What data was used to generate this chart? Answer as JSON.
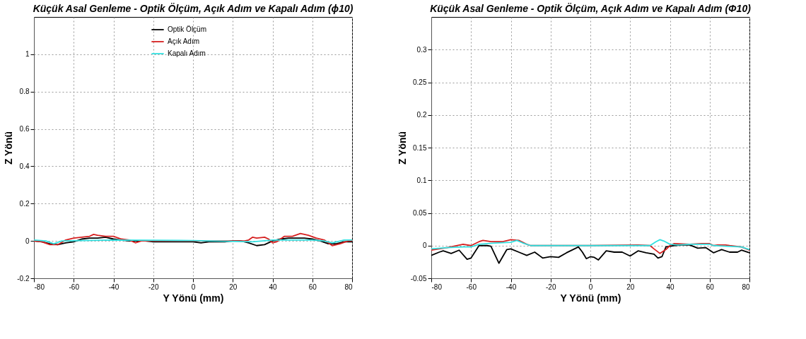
{
  "chart_data": [
    {
      "type": "line",
      "title": "Küçük Asal Genleme - Optik Ölçüm, Açık Adım ve Kapalı Adım (ϕ10)",
      "xlabel": "Y Yönü (mm)",
      "ylabel": "Z Yönü",
      "xlim": [
        -80,
        80
      ],
      "xticks": [
        -80,
        -60,
        -40,
        -20,
        0,
        20,
        40,
        60,
        80
      ],
      "ylim": [
        -0.2,
        1.2
      ],
      "yticks": [
        -0.2,
        0,
        0.2,
        0.4,
        0.6,
        0.8,
        1
      ],
      "grid": true,
      "legend": "top",
      "line_style": "solid",
      "marker": "none",
      "series": [
        {
          "name": "Optik Ölçüm",
          "color": "#000000",
          "x": [
            -80,
            -76,
            -72,
            -68,
            -64,
            -60,
            -56,
            -52,
            -48,
            -44,
            -40,
            -36,
            -32,
            -28,
            -24,
            -20,
            -16,
            -12,
            -8,
            -4,
            0,
            4,
            8,
            12,
            16,
            20,
            24,
            28,
            32,
            36,
            40,
            44,
            48,
            52,
            56,
            60,
            64,
            68,
            72,
            76,
            80
          ],
          "values": [
            0,
            -0.005,
            -0.015,
            -0.02,
            -0.01,
            -0.005,
            0.01,
            0.015,
            0.015,
            0.02,
            0.01,
            0.005,
            0,
            0,
            0,
            -0.005,
            -0.005,
            -0.005,
            -0.005,
            -0.005,
            -0.005,
            -0.01,
            -0.005,
            -0.005,
            -0.005,
            0,
            0,
            -0.01,
            -0.025,
            -0.02,
            0,
            0.01,
            0.015,
            0.015,
            0.015,
            0.01,
            0,
            -0.015,
            -0.015,
            -0.005,
            -0.005
          ]
        },
        {
          "name": "Açık Adım",
          "color": "#d62020",
          "x": [
            -80,
            -76,
            -72,
            -68,
            -64,
            -60,
            -56,
            -52,
            -50,
            -48,
            -44,
            -40,
            -36,
            -32,
            -29,
            -26,
            -20,
            0,
            26,
            28,
            30,
            32,
            36,
            38,
            40,
            42,
            46,
            50,
            54,
            58,
            62,
            66,
            70,
            74,
            78,
            80
          ],
          "values": [
            0,
            -0.005,
            -0.02,
            -0.02,
            0.005,
            0.015,
            0.02,
            0.025,
            0.035,
            0.03,
            0.025,
            0.025,
            0.01,
            0.005,
            -0.01,
            0,
            0,
            0,
            0,
            0.005,
            0.02,
            0.015,
            0.02,
            0.01,
            -0.01,
            -0.005,
            0.025,
            0.025,
            0.04,
            0.03,
            0.015,
            0.005,
            -0.025,
            -0.015,
            0,
            0
          ]
        },
        {
          "name": "Kapalı Adım",
          "color": "#33e0e0",
          "x": [
            -80,
            -74,
            -70,
            -66,
            -40,
            0,
            30,
            40,
            60,
            66,
            70,
            76,
            80
          ],
          "values": [
            0.005,
            0,
            -0.015,
            0,
            0.005,
            0.002,
            -0.005,
            0.005,
            0.005,
            0,
            -0.01,
            0.005,
            0.005
          ]
        }
      ]
    },
    {
      "type": "line",
      "title": "Küçük Asal Genleme - Optik Ölçüm, Açık Adım ve Kapalı Adım (Φ10)",
      "xlabel": "Y Yönü (mm)",
      "ylabel": "Z Yönü",
      "xlim": [
        -80,
        80
      ],
      "xticks": [
        -80,
        -60,
        -40,
        -20,
        0,
        20,
        40,
        60,
        80
      ],
      "ylim": [
        -0.05,
        0.35
      ],
      "yticks": [
        -0.05,
        0,
        0.05,
        0.1,
        0.15,
        0.2,
        0.25,
        0.3
      ],
      "grid": true,
      "legend": "top",
      "line_style": "solid",
      "marker": "none",
      "series": [
        {
          "name": "Optik Ölçüm",
          "color": "#000000",
          "x": [
            -80,
            -76,
            -74,
            -70,
            -66,
            -62,
            -60,
            -56,
            -52,
            -50,
            -46,
            -42,
            -40,
            -36,
            -32,
            -28,
            -24,
            -20,
            -16,
            -12,
            -8,
            -6,
            -4,
            -2,
            0,
            2,
            4,
            8,
            12,
            16,
            20,
            24,
            28,
            32,
            34,
            36,
            38,
            42,
            46,
            50,
            54,
            58,
            62,
            66,
            70,
            74,
            76,
            80
          ],
          "values": [
            -0.015,
            -0.01,
            -0.008,
            -0.012,
            -0.007,
            -0.021,
            -0.019,
            0,
            0,
            -0.001,
            -0.027,
            -0.006,
            -0.005,
            -0.01,
            -0.015,
            -0.01,
            -0.019,
            -0.017,
            -0.018,
            -0.011,
            -0.005,
            -0.002,
            -0.01,
            -0.02,
            -0.017,
            -0.018,
            -0.022,
            -0.008,
            -0.01,
            -0.01,
            -0.016,
            -0.008,
            -0.011,
            -0.013,
            -0.019,
            -0.017,
            -0.002,
            0,
            0.001,
            0.001,
            -0.004,
            -0.003,
            -0.011,
            -0.006,
            -0.01,
            -0.01,
            -0.007,
            -0.011
          ]
        },
        {
          "name": "Açık Adım",
          "color": "#d62020",
          "x": [
            -80,
            -72,
            -64,
            -60,
            -56,
            -54,
            -50,
            -44,
            -40,
            -36,
            -32,
            -30,
            0,
            24,
            30,
            32,
            35,
            38,
            40,
            42,
            50,
            56,
            60,
            62,
            64,
            68,
            70,
            76,
            80
          ],
          "values": [
            -0.007,
            -0.003,
            0.002,
            0,
            0.006,
            0.008,
            0.006,
            0.006,
            0.009,
            0.008,
            0.002,
            0,
            0,
            0.001,
            0,
            -0.005,
            -0.012,
            -0.006,
            0,
            0.003,
            0.002,
            0.003,
            0.003,
            0,
            0.001,
            0.001,
            0,
            -0.002,
            -0.007
          ]
        },
        {
          "name": "Kapalı Adım",
          "color": "#33e0e0",
          "x": [
            -80,
            -72,
            -64,
            -60,
            -56,
            -48,
            -40,
            -37,
            -34,
            -30,
            0,
            30,
            33,
            35,
            37,
            40,
            44,
            50,
            60,
            62,
            76,
            80
          ],
          "values": [
            -0.005,
            -0.003,
            -0.002,
            -0.002,
            0.002,
            0.004,
            0.005,
            0.008,
            0.004,
            0,
            0,
            0,
            0.006,
            0.009,
            0.007,
            0.002,
            0.001,
            0.002,
            0.002,
            0,
            -0.002,
            -0.006
          ]
        }
      ]
    }
  ]
}
